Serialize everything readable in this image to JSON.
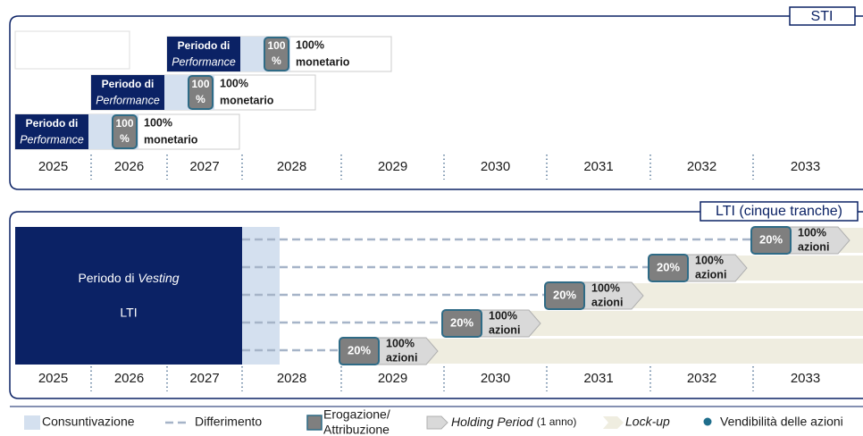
{
  "sti": {
    "label": "STI",
    "rows": [
      {
        "period": [
          "Periodo di",
          "Performance"
        ],
        "badge": [
          "100",
          "%"
        ],
        "payout": [
          "100%",
          "monetario"
        ]
      },
      {
        "period": [
          "Periodo di",
          "Performance"
        ],
        "badge": [
          "100",
          "%"
        ],
        "payout": [
          "100%",
          "monetario"
        ]
      },
      {
        "period": [
          "Periodo di",
          "Performance"
        ],
        "badge": [
          "100",
          "%"
        ],
        "payout": [
          "100%",
          "monetario"
        ]
      }
    ],
    "years": [
      "2025",
      "2026",
      "2027",
      "2028",
      "2029",
      "2030",
      "2031",
      "2032",
      "2033"
    ]
  },
  "lti": {
    "label": "LTI (cinque tranche)",
    "vesting": [
      "Periodo di",
      "Vesting"
    ],
    "vesting_sub": "LTI",
    "tranches": [
      {
        "share": "20%",
        "payout": [
          "100%",
          "azioni"
        ]
      },
      {
        "share": "20%",
        "payout": [
          "100%",
          "azioni"
        ]
      },
      {
        "share": "20%",
        "payout": [
          "100%",
          "azioni"
        ]
      },
      {
        "share": "20%",
        "payout": [
          "100%",
          "azioni"
        ]
      },
      {
        "share": "20%",
        "payout": [
          "100%",
          "azioni"
        ]
      }
    ],
    "years": [
      "2025",
      "2026",
      "2027",
      "2028",
      "2029",
      "2030",
      "2031",
      "2032",
      "2033"
    ]
  },
  "legend": {
    "consuntivazione": "Consuntivazione",
    "differimento": "Differimento",
    "erogazione": [
      "Erogazione/",
      "Attribuzione"
    ],
    "holding": [
      "Holding Period",
      "(1 anno)"
    ],
    "lockup": "Lock-up",
    "vendibilita": "Vendibilità delle azioni"
  }
}
